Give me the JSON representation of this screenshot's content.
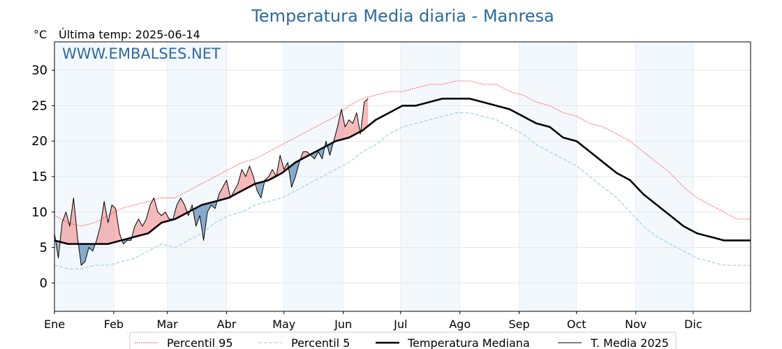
{
  "chart_data": {
    "type": "line",
    "title": "Temperatura Media diaria - Manresa",
    "unit_label": "°C",
    "last_temp_label": "Última temp: 2025-06-14",
    "watermark": "WWW.EMBALSES.NET",
    "x_unit": "day of year",
    "xlim": [
      1,
      365
    ],
    "ylim": [
      -4,
      34
    ],
    "y_ticks": [
      0,
      5,
      10,
      15,
      20,
      25,
      30
    ],
    "months": [
      {
        "label": "Ene",
        "day": 1
      },
      {
        "label": "Feb",
        "day": 32
      },
      {
        "label": "Mar",
        "day": 60
      },
      {
        "label": "Abr",
        "day": 91
      },
      {
        "label": "May",
        "day": 121
      },
      {
        "label": "Jun",
        "day": 152
      },
      {
        "label": "Jul",
        "day": 182
      },
      {
        "label": "Ago",
        "day": 213
      },
      {
        "label": "Sep",
        "day": 244
      },
      {
        "label": "Oct",
        "day": 274
      },
      {
        "label": "Nov",
        "day": 305
      },
      {
        "label": "Dic",
        "day": 335
      }
    ],
    "shaded_month_bands": [
      [
        1,
        32
      ],
      [
        60,
        91
      ],
      [
        121,
        152
      ],
      [
        182,
        213
      ],
      [
        244,
        274
      ],
      [
        305,
        335
      ]
    ],
    "grid": true,
    "legend_position": "bottom",
    "series": [
      {
        "name": "Percentil 95",
        "style": "dotted",
        "color": "#ff2a2a",
        "x": [
          1,
          8,
          15,
          22,
          29,
          36,
          43,
          50,
          57,
          64,
          71,
          78,
          85,
          92,
          99,
          106,
          113,
          120,
          127,
          134,
          141,
          148,
          155,
          162,
          169,
          176,
          183,
          190,
          197,
          204,
          211,
          218,
          225,
          232,
          239,
          246,
          253,
          260,
          267,
          274,
          281,
          288,
          295,
          302,
          309,
          316,
          323,
          330,
          337,
          344,
          351,
          358,
          365
        ],
        "y": [
          9.5,
          8.5,
          8.0,
          8.5,
          9.5,
          10.5,
          11.0,
          11.5,
          12.0,
          12.0,
          13.0,
          14.0,
          15.0,
          16.0,
          17.0,
          17.5,
          18.5,
          19.5,
          20.5,
          21.5,
          22.5,
          23.5,
          25.0,
          26.0,
          26.5,
          27.0,
          27.0,
          27.5,
          28.0,
          28.0,
          28.5,
          28.5,
          28.0,
          28.0,
          27.0,
          26.5,
          25.5,
          25.0,
          24.0,
          23.5,
          22.5,
          22.0,
          21.0,
          20.0,
          18.5,
          17.0,
          15.5,
          13.5,
          12.0,
          11.0,
          10.0,
          9.0,
          9.0
        ]
      },
      {
        "name": "Percentil 5",
        "style": "dashed",
        "color": "#a6d3e4",
        "x": [
          1,
          8,
          15,
          22,
          29,
          36,
          43,
          50,
          57,
          64,
          71,
          78,
          85,
          92,
          99,
          106,
          113,
          120,
          127,
          134,
          141,
          148,
          155,
          162,
          169,
          176,
          183,
          190,
          197,
          204,
          211,
          218,
          225,
          232,
          239,
          246,
          253,
          260,
          267,
          274,
          281,
          288,
          295,
          302,
          309,
          316,
          323,
          330,
          337,
          344,
          351,
          358,
          365
        ],
        "y": [
          2.5,
          2.0,
          2.0,
          2.5,
          2.5,
          3.0,
          3.5,
          4.5,
          5.5,
          5.0,
          6.0,
          7.0,
          8.5,
          9.5,
          10.0,
          11.0,
          11.5,
          12.0,
          13.0,
          14.0,
          15.0,
          16.0,
          17.0,
          18.5,
          19.5,
          21.0,
          22.0,
          22.5,
          23.0,
          23.5,
          24.0,
          24.0,
          23.5,
          23.0,
          22.0,
          21.0,
          19.5,
          18.5,
          17.5,
          16.5,
          15.0,
          13.5,
          12.0,
          10.0,
          8.0,
          6.5,
          5.5,
          4.5,
          3.5,
          3.0,
          2.5,
          2.5,
          2.5
        ]
      },
      {
        "name": "Temperatura Mediana",
        "style": "solid-thick",
        "color": "#000000",
        "x": [
          1,
          8,
          15,
          22,
          29,
          36,
          43,
          50,
          57,
          64,
          71,
          78,
          85,
          92,
          99,
          106,
          113,
          120,
          127,
          134,
          141,
          148,
          155,
          162,
          169,
          176,
          183,
          190,
          197,
          204,
          211,
          218,
          225,
          232,
          239,
          246,
          253,
          260,
          267,
          274,
          281,
          288,
          295,
          302,
          309,
          316,
          323,
          330,
          337,
          344,
          351,
          358,
          365
        ],
        "y": [
          6.0,
          5.5,
          5.5,
          5.5,
          5.5,
          6.0,
          6.5,
          7.0,
          8.5,
          9.0,
          10.0,
          11.0,
          11.5,
          12.0,
          13.0,
          14.0,
          14.5,
          15.5,
          17.0,
          18.0,
          19.0,
          20.0,
          20.5,
          21.5,
          23.0,
          24.0,
          25.0,
          25.0,
          25.5,
          26.0,
          26.0,
          26.0,
          25.5,
          25.0,
          24.5,
          23.5,
          22.5,
          22.0,
          20.5,
          20.0,
          18.5,
          17.0,
          15.5,
          14.5,
          12.5,
          11.0,
          9.5,
          8.0,
          7.0,
          6.5,
          6.0,
          6.0,
          6.0
        ]
      },
      {
        "name": "T. Media 2025",
        "style": "solid-thin",
        "color": "#000000",
        "x": [
          1,
          3,
          5,
          7,
          9,
          11,
          13,
          15,
          17,
          19,
          21,
          23,
          25,
          27,
          29,
          31,
          33,
          35,
          37,
          39,
          41,
          43,
          45,
          47,
          49,
          51,
          53,
          55,
          57,
          59,
          61,
          63,
          65,
          67,
          69,
          71,
          73,
          75,
          77,
          79,
          81,
          83,
          85,
          87,
          89,
          91,
          93,
          95,
          97,
          99,
          101,
          103,
          105,
          107,
          109,
          111,
          113,
          115,
          117,
          119,
          121,
          123,
          125,
          127,
          129,
          131,
          133,
          135,
          137,
          139,
          141,
          143,
          145,
          147,
          149,
          151,
          153,
          155,
          157,
          159,
          161,
          163,
          165
        ],
        "y": [
          7.0,
          3.5,
          8.5,
          10.0,
          8.0,
          12.0,
          6.5,
          2.5,
          3.0,
          5.0,
          4.5,
          6.0,
          8.0,
          11.5,
          8.5,
          11.0,
          10.5,
          7.0,
          5.5,
          6.0,
          6.0,
          8.0,
          9.0,
          8.0,
          9.0,
          11.0,
          12.0,
          10.0,
          9.5,
          10.0,
          9.0,
          9.0,
          11.0,
          12.0,
          11.0,
          9.5,
          11.0,
          8.0,
          9.5,
          6.0,
          10.0,
          11.0,
          10.5,
          12.5,
          13.5,
          14.5,
          12.0,
          13.0,
          14.0,
          16.0,
          15.0,
          16.5,
          15.0,
          13.0,
          12.0,
          14.5,
          15.0,
          16.0,
          15.0,
          18.0,
          16.0,
          17.0,
          13.5,
          15.0,
          17.0,
          18.5,
          18.5,
          18.0,
          17.5,
          18.5,
          17.5,
          20.0,
          18.0,
          20.0,
          22.0,
          24.5,
          22.0,
          23.0,
          22.5,
          24.0,
          21.0,
          25.5,
          26.0
        ]
      }
    ]
  }
}
